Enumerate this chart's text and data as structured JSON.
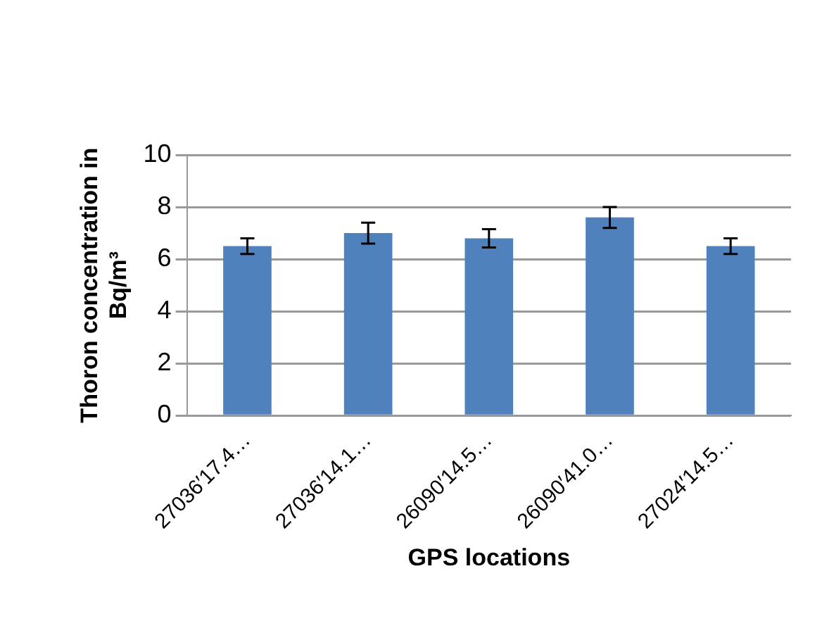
{
  "chart_data": {
    "type": "bar",
    "xlabel": "GPS locations",
    "ylabel": "Thoron concentration in Bq/m³",
    "categories": [
      "27036′17.4…",
      "27036′14.1…",
      "26090′14.5…",
      "26090′41.0…",
      "27024′14.5…"
    ],
    "values": [
      6.5,
      7.0,
      6.8,
      7.6,
      6.5
    ],
    "errors": [
      0.3,
      0.4,
      0.35,
      0.4,
      0.3
    ],
    "color": "#4f81bd",
    "ylim": [
      0,
      10
    ],
    "yticks": [
      0,
      2,
      4,
      6,
      8,
      10
    ],
    "grid": "y",
    "legend": false
  }
}
